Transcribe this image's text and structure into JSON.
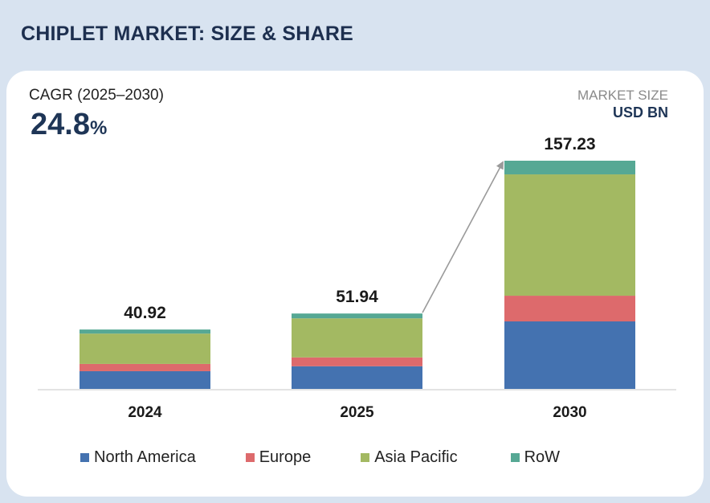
{
  "header": {
    "title": "CHIPLET MARKET: SIZE & SHARE"
  },
  "cagr": {
    "label": "CAGR (2025–2030)",
    "value": "24.8",
    "unit": "%"
  },
  "market_size": {
    "label": "MARKET SIZE",
    "unit": "USD BN"
  },
  "colors": {
    "North America": "#4472b0",
    "Europe": "#dd6a6c",
    "Asia Pacific": "#a3b962",
    "RoW": "#56a894",
    "arrow": "#9a9a9a",
    "axis": "#e3e3e3"
  },
  "chart_data": {
    "type": "bar",
    "stacked": true,
    "title": "CHIPLET MARKET: SIZE & SHARE",
    "xlabel": "",
    "ylabel": "Market Size (USD BN)",
    "categories": [
      "2024",
      "2025",
      "2030"
    ],
    "totals": [
      "40.92",
      "51.94",
      "157.23"
    ],
    "series": [
      {
        "name": "North America",
        "values": [
          12.2,
          15.6,
          46.5
        ]
      },
      {
        "name": "Europe",
        "values": [
          5.0,
          6.1,
          17.7
        ]
      },
      {
        "name": "Asia Pacific",
        "values": [
          20.9,
          26.9,
          83.6
        ]
      },
      {
        "name": "RoW",
        "values": [
          2.82,
          3.34,
          9.43
        ]
      }
    ],
    "ylim": [
      0,
      157.23
    ],
    "grid": false,
    "legend": "bottom",
    "annotations": [
      {
        "type": "arrow",
        "from": "2025",
        "to": "2030"
      }
    ]
  }
}
